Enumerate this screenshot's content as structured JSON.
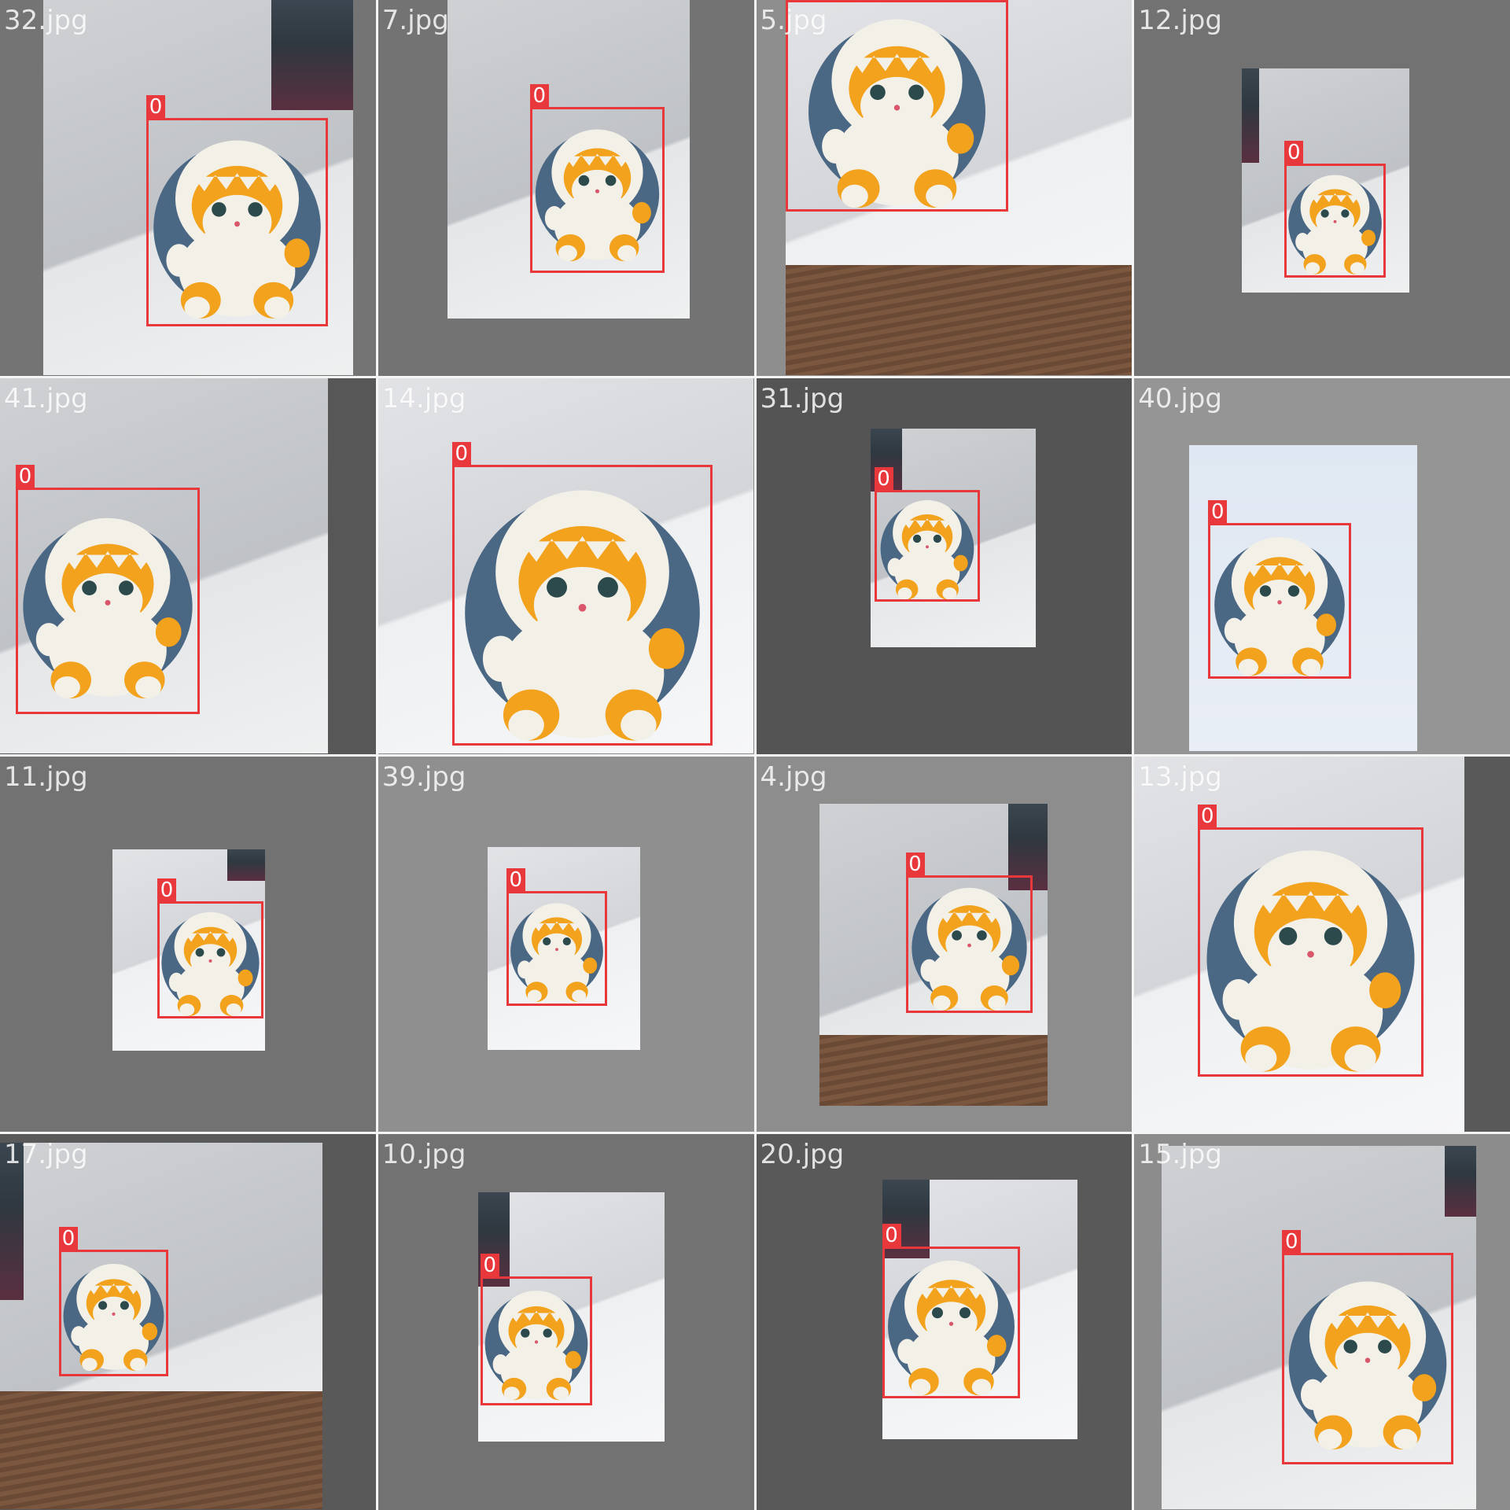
{
  "tiles": [
    {
      "filename": "32.jpg",
      "label": "0"
    },
    {
      "filename": "7.jpg",
      "label": "0"
    },
    {
      "filename": "5.jpg",
      "label": "0"
    },
    {
      "filename": "12.jpg",
      "label": "0"
    },
    {
      "filename": "41.jpg",
      "label": "0"
    },
    {
      "filename": "14.jpg",
      "label": "0"
    },
    {
      "filename": "31.jpg",
      "label": "0"
    },
    {
      "filename": "40.jpg",
      "label": "0"
    },
    {
      "filename": "11.jpg",
      "label": "0"
    },
    {
      "filename": "39.jpg",
      "label": "0"
    },
    {
      "filename": "4.jpg",
      "label": "0"
    },
    {
      "filename": "13.jpg",
      "label": "0"
    },
    {
      "filename": "17.jpg",
      "label": "0"
    },
    {
      "filename": "10.jpg",
      "label": "0"
    },
    {
      "filename": "20.jpg",
      "label": "0"
    },
    {
      "filename": "15.jpg",
      "label": "0"
    }
  ],
  "colors": {
    "box": "#e8383b",
    "letterbox": "#727272",
    "shark_blue": "#4a6784",
    "cat_orange": "#f2a21c",
    "plush_white": "#f3f0e8"
  },
  "subject": "shark-hooded-cat-plush-icon"
}
